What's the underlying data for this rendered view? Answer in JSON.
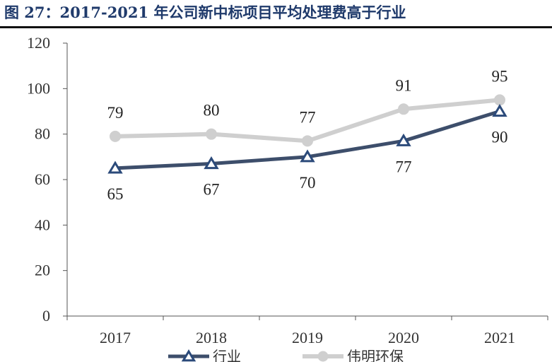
{
  "title": "图 27：2017-2021 年公司新中标项目平均处理费高于行业",
  "chart_data": {
    "type": "line",
    "categories": [
      "2017",
      "2018",
      "2019",
      "2020",
      "2021"
    ],
    "series": [
      {
        "name": "行业",
        "values": [
          65,
          67,
          70,
          77,
          90
        ],
        "color": "#3d4e6b",
        "marker": "triangle"
      },
      {
        "name": "伟明环保",
        "values": [
          79,
          80,
          77,
          91,
          95
        ],
        "color": "#cfcfcf",
        "marker": "circle"
      }
    ],
    "ylim": [
      0,
      120
    ],
    "yticks": [
      0,
      20,
      40,
      60,
      80,
      100,
      120
    ],
    "xlabel": "",
    "ylabel": "",
    "legend": "bottom"
  }
}
